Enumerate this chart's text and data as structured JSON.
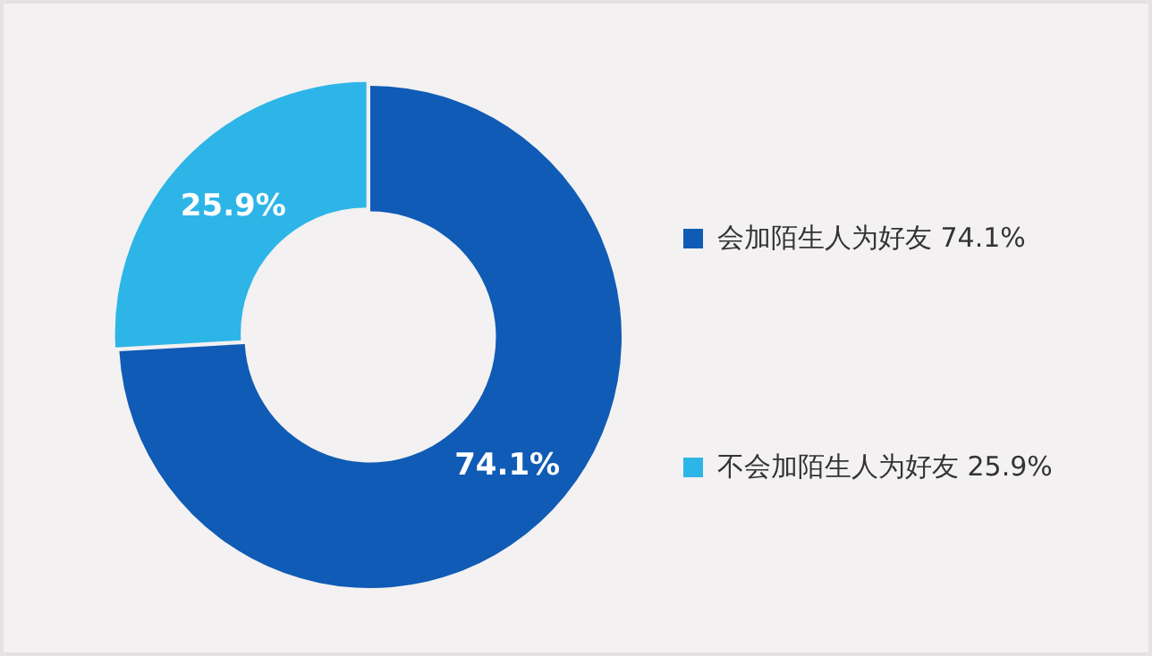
{
  "chart_data": {
    "type": "donut",
    "categories": [
      "会加陌生人为好友",
      "不会加陌生人为好友"
    ],
    "values": [
      74.1,
      25.9
    ],
    "colors": [
      "#0f5bb5",
      "#2db5e8"
    ],
    "value_labels": [
      "74.1%",
      "25.9%"
    ],
    "legend": "right"
  }
}
